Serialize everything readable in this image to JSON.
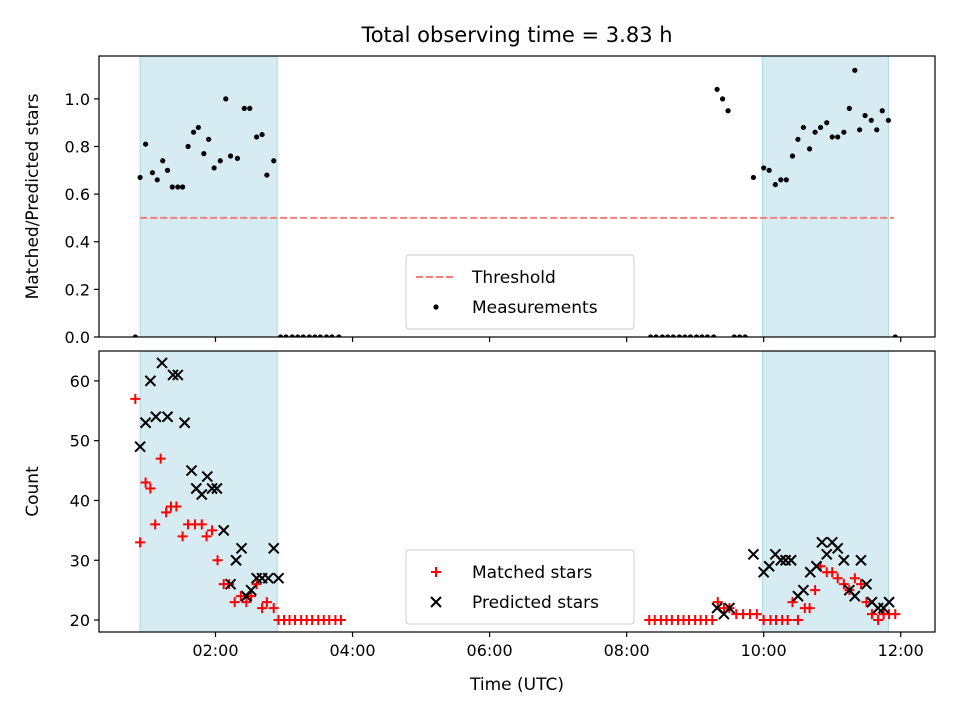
{
  "chart_data": [
    {
      "type": "scatter",
      "title": "Total observing time = 3.83 h",
      "ylabel": "Matched/Predicted stars",
      "xlabel": "",
      "xlim": [
        0.3,
        12.5
      ],
      "ylim": [
        0,
        1.18
      ],
      "yticks": [
        0.0,
        0.2,
        0.4,
        0.6,
        0.8,
        1.0
      ],
      "ytick_labels": [
        "0.0",
        "0.2",
        "0.4",
        "0.6",
        "0.8",
        "1.0"
      ],
      "shaded_spans": [
        [
          0.9,
          2.9
        ],
        [
          9.98,
          11.82
        ]
      ],
      "shaded_color": "#add8e6",
      "threshold": {
        "name": "Threshold",
        "y": 0.5,
        "x": [
          0.9,
          11.9
        ],
        "color": "#f08080",
        "style": "dashed"
      },
      "legend_location": "lower center",
      "series": [
        {
          "name": "Measurements",
          "marker": "dot",
          "color": "#000000",
          "points": [
            [
              0.83,
              0.0
            ],
            [
              0.9,
              0.67
            ],
            [
              0.98,
              0.81
            ],
            [
              1.08,
              0.69
            ],
            [
              1.15,
              0.66
            ],
            [
              1.23,
              0.74
            ],
            [
              1.3,
              0.7
            ],
            [
              1.37,
              0.63
            ],
            [
              1.45,
              0.63
            ],
            [
              1.52,
              0.63
            ],
            [
              1.6,
              0.8
            ],
            [
              1.68,
              0.86
            ],
            [
              1.75,
              0.88
            ],
            [
              1.83,
              0.77
            ],
            [
              1.9,
              0.83
            ],
            [
              1.98,
              0.71
            ],
            [
              2.07,
              0.74
            ],
            [
              2.15,
              1.0
            ],
            [
              2.22,
              0.76
            ],
            [
              2.32,
              0.75
            ],
            [
              2.42,
              0.96
            ],
            [
              2.5,
              0.96
            ],
            [
              2.6,
              0.84
            ],
            [
              2.68,
              0.85
            ],
            [
              2.75,
              0.68
            ],
            [
              2.85,
              0.74
            ],
            [
              2.95,
              0.0
            ],
            [
              3.03,
              0.0
            ],
            [
              3.12,
              0.0
            ],
            [
              3.2,
              0.0
            ],
            [
              3.28,
              0.0
            ],
            [
              3.37,
              0.0
            ],
            [
              3.45,
              0.0
            ],
            [
              3.53,
              0.0
            ],
            [
              3.62,
              0.0
            ],
            [
              3.7,
              0.0
            ],
            [
              3.8,
              0.0
            ],
            [
              8.35,
              0.0
            ],
            [
              8.43,
              0.0
            ],
            [
              8.52,
              0.0
            ],
            [
              8.6,
              0.0
            ],
            [
              8.68,
              0.0
            ],
            [
              8.77,
              0.0
            ],
            [
              8.85,
              0.0
            ],
            [
              8.93,
              0.0
            ],
            [
              9.02,
              0.0
            ],
            [
              9.1,
              0.0
            ],
            [
              9.18,
              0.0
            ],
            [
              9.27,
              0.0
            ],
            [
              9.32,
              1.04
            ],
            [
              9.4,
              1.0
            ],
            [
              9.48,
              0.95
            ],
            [
              9.57,
              0.0
            ],
            [
              9.65,
              0.0
            ],
            [
              9.73,
              0.0
            ],
            [
              9.85,
              0.67
            ],
            [
              10.0,
              0.71
            ],
            [
              10.08,
              0.7
            ],
            [
              10.17,
              0.64
            ],
            [
              10.25,
              0.66
            ],
            [
              10.33,
              0.66
            ],
            [
              10.42,
              0.76
            ],
            [
              10.5,
              0.83
            ],
            [
              10.58,
              0.88
            ],
            [
              10.67,
              0.79
            ],
            [
              10.75,
              0.86
            ],
            [
              10.83,
              0.88
            ],
            [
              10.92,
              0.9
            ],
            [
              11.0,
              0.84
            ],
            [
              11.08,
              0.84
            ],
            [
              11.17,
              0.86
            ],
            [
              11.25,
              0.96
            ],
            [
              11.33,
              1.12
            ],
            [
              11.4,
              0.87
            ],
            [
              11.48,
              0.93
            ],
            [
              11.57,
              0.91
            ],
            [
              11.65,
              0.87
            ],
            [
              11.73,
              0.95
            ],
            [
              11.82,
              0.91
            ],
            [
              11.92,
              0.0
            ]
          ]
        }
      ]
    },
    {
      "type": "scatter",
      "title": "",
      "ylabel": "Count",
      "xlabel": "Time (UTC)",
      "xlim": [
        0.3,
        12.5
      ],
      "ylim": [
        18,
        65
      ],
      "yticks": [
        20,
        30,
        40,
        50,
        60
      ],
      "ytick_labels": [
        "20",
        "30",
        "40",
        "50",
        "60"
      ],
      "xticks": [
        2,
        4,
        6,
        8,
        10,
        12
      ],
      "xtick_labels": [
        "02:00",
        "04:00",
        "06:00",
        "08:00",
        "10:00",
        "12:00"
      ],
      "shaded_spans": [
        [
          0.9,
          2.9
        ],
        [
          9.98,
          11.82
        ]
      ],
      "shaded_color": "#add8e6",
      "legend_location": "lower center",
      "series": [
        {
          "name": "Matched stars",
          "marker": "plus",
          "color": "#ff0000",
          "points": [
            [
              0.83,
              57
            ],
            [
              0.9,
              33
            ],
            [
              0.98,
              43
            ],
            [
              1.05,
              42
            ],
            [
              1.12,
              36
            ],
            [
              1.2,
              47
            ],
            [
              1.28,
              38
            ],
            [
              1.35,
              39
            ],
            [
              1.43,
              39
            ],
            [
              1.52,
              34
            ],
            [
              1.6,
              36
            ],
            [
              1.7,
              36
            ],
            [
              1.8,
              36
            ],
            [
              1.87,
              34
            ],
            [
              1.95,
              35
            ],
            [
              2.03,
              30
            ],
            [
              2.12,
              26
            ],
            [
              2.2,
              26
            ],
            [
              2.28,
              23
            ],
            [
              2.37,
              24
            ],
            [
              2.45,
              23
            ],
            [
              2.52,
              24
            ],
            [
              2.6,
              26
            ],
            [
              2.68,
              22
            ],
            [
              2.75,
              23
            ],
            [
              2.85,
              22
            ],
            [
              2.92,
              20
            ],
            [
              3.0,
              20
            ],
            [
              3.08,
              20
            ],
            [
              3.16,
              20
            ],
            [
              3.25,
              20
            ],
            [
              3.33,
              20
            ],
            [
              3.41,
              20
            ],
            [
              3.5,
              20
            ],
            [
              3.58,
              20
            ],
            [
              3.66,
              20
            ],
            [
              3.75,
              20
            ],
            [
              3.83,
              20
            ],
            [
              8.33,
              20
            ],
            [
              8.41,
              20
            ],
            [
              8.5,
              20
            ],
            [
              8.58,
              20
            ],
            [
              8.66,
              20
            ],
            [
              8.75,
              20
            ],
            [
              8.83,
              20
            ],
            [
              8.91,
              20
            ],
            [
              9.0,
              20
            ],
            [
              9.08,
              20
            ],
            [
              9.16,
              20
            ],
            [
              9.25,
              20
            ],
            [
              9.33,
              23
            ],
            [
              9.42,
              22
            ],
            [
              9.5,
              22
            ],
            [
              9.6,
              21
            ],
            [
              9.7,
              21
            ],
            [
              9.8,
              21
            ],
            [
              9.9,
              21
            ],
            [
              10.0,
              20
            ],
            [
              10.1,
              20
            ],
            [
              10.18,
              20
            ],
            [
              10.27,
              20
            ],
            [
              10.35,
              20
            ],
            [
              10.42,
              23
            ],
            [
              10.5,
              20
            ],
            [
              10.6,
              22
            ],
            [
              10.67,
              22
            ],
            [
              10.75,
              25
            ],
            [
              10.83,
              29
            ],
            [
              10.92,
              28
            ],
            [
              11.0,
              28
            ],
            [
              11.08,
              27
            ],
            [
              11.17,
              26
            ],
            [
              11.25,
              25
            ],
            [
              11.33,
              27
            ],
            [
              11.42,
              26
            ],
            [
              11.5,
              23
            ],
            [
              11.58,
              21
            ],
            [
              11.67,
              20
            ],
            [
              11.75,
              21
            ],
            [
              11.83,
              21
            ],
            [
              11.92,
              21
            ]
          ]
        },
        {
          "name": "Predicted stars",
          "marker": "x",
          "color": "#000000",
          "points": [
            [
              0.9,
              49
            ],
            [
              0.98,
              53
            ],
            [
              1.05,
              60
            ],
            [
              1.13,
              54
            ],
            [
              1.22,
              63
            ],
            [
              1.3,
              54
            ],
            [
              1.38,
              61
            ],
            [
              1.45,
              61
            ],
            [
              1.55,
              53
            ],
            [
              1.65,
              45
            ],
            [
              1.72,
              42
            ],
            [
              1.8,
              41
            ],
            [
              1.88,
              44
            ],
            [
              1.95,
              42
            ],
            [
              2.02,
              42
            ],
            [
              2.12,
              35
            ],
            [
              2.22,
              26
            ],
            [
              2.3,
              30
            ],
            [
              2.38,
              32
            ],
            [
              2.45,
              24
            ],
            [
              2.52,
              25
            ],
            [
              2.6,
              27
            ],
            [
              2.68,
              27
            ],
            [
              2.77,
              27
            ],
            [
              2.85,
              32
            ],
            [
              2.92,
              27
            ],
            [
              9.32,
              22
            ],
            [
              9.42,
              21
            ],
            [
              9.5,
              22
            ],
            [
              9.85,
              31
            ],
            [
              10.0,
              28
            ],
            [
              10.08,
              29
            ],
            [
              10.17,
              31
            ],
            [
              10.25,
              30
            ],
            [
              10.32,
              30
            ],
            [
              10.4,
              30
            ],
            [
              10.5,
              24
            ],
            [
              10.58,
              25
            ],
            [
              10.68,
              28
            ],
            [
              10.77,
              29
            ],
            [
              10.85,
              33
            ],
            [
              10.92,
              31
            ],
            [
              11.0,
              33
            ],
            [
              11.08,
              32
            ],
            [
              11.17,
              30
            ],
            [
              11.25,
              25
            ],
            [
              11.33,
              24
            ],
            [
              11.42,
              30
            ],
            [
              11.5,
              26
            ],
            [
              11.58,
              23
            ],
            [
              11.67,
              22
            ],
            [
              11.75,
              22
            ],
            [
              11.83,
              23
            ]
          ]
        }
      ]
    }
  ]
}
